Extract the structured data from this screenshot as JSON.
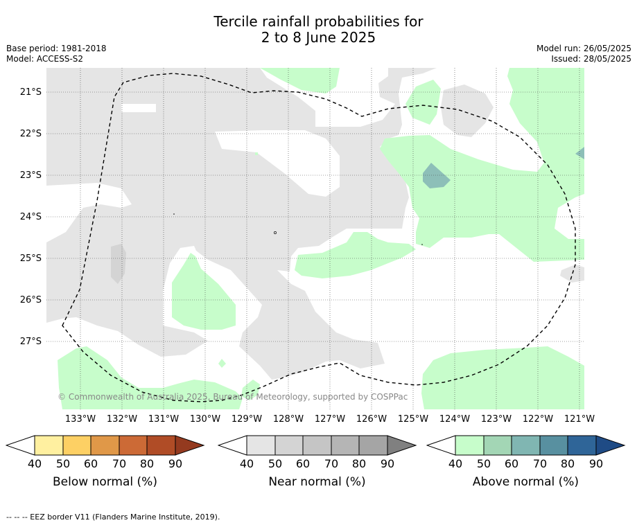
{
  "title": {
    "line1": "Tercile rainfall probabilities for",
    "line2": "2 to 8 June 2025"
  },
  "meta": {
    "base_period": "Base period: 1981-2018",
    "model": "Model: ACCESS-S2",
    "model_run": "Model run: 26/05/2025",
    "issued": "Issued: 28/05/2025"
  },
  "map": {
    "latitude_labels": [
      "21°S",
      "22°S",
      "23°S",
      "24°S",
      "25°S",
      "26°S",
      "27°S"
    ],
    "longitude_labels": [
      "133°W",
      "132°W",
      "131°W",
      "130°W",
      "129°W",
      "128°W",
      "127°W",
      "126°W",
      "125°W",
      "124°W",
      "123°W",
      "122°W",
      "121°W"
    ],
    "copyright": "© Commonwealth of Australia 2025, Bureau of Meteorology, supported by COSPPac",
    "colors": {
      "near_normal_40": "#e5e5e5",
      "near_normal_50": "#d4d4d4",
      "above_normal_40": "#c7fdcb",
      "above_normal_60": "#8dbfb8",
      "eez_border": "#000000"
    }
  },
  "colorbars": [
    {
      "title": "Below normal (%)",
      "ticks": [
        "40",
        "50",
        "60",
        "70",
        "80",
        "90"
      ],
      "colors": [
        "#fff0a0",
        "#fdd064",
        "#e09848",
        "#cc6a36",
        "#b04c26",
        "#943a1f"
      ]
    },
    {
      "title": "Near normal (%)",
      "ticks": [
        "40",
        "50",
        "60",
        "70",
        "80",
        "90"
      ],
      "colors": [
        "#e5e5e5",
        "#d4d4d4",
        "#c5c5c5",
        "#b5b5b5",
        "#a5a5a5",
        "#808080"
      ]
    },
    {
      "title": "Above normal (%)",
      "ticks": [
        "40",
        "50",
        "60",
        "70",
        "80",
        "90"
      ],
      "colors": [
        "#c7fdcb",
        "#a3d6b5",
        "#80b6b2",
        "#5890a0",
        "#2f6598",
        "#1f4b85"
      ]
    }
  ],
  "footnote": "--  --  -- EEZ border V11 (Flanders Marine Institute, 2019)."
}
